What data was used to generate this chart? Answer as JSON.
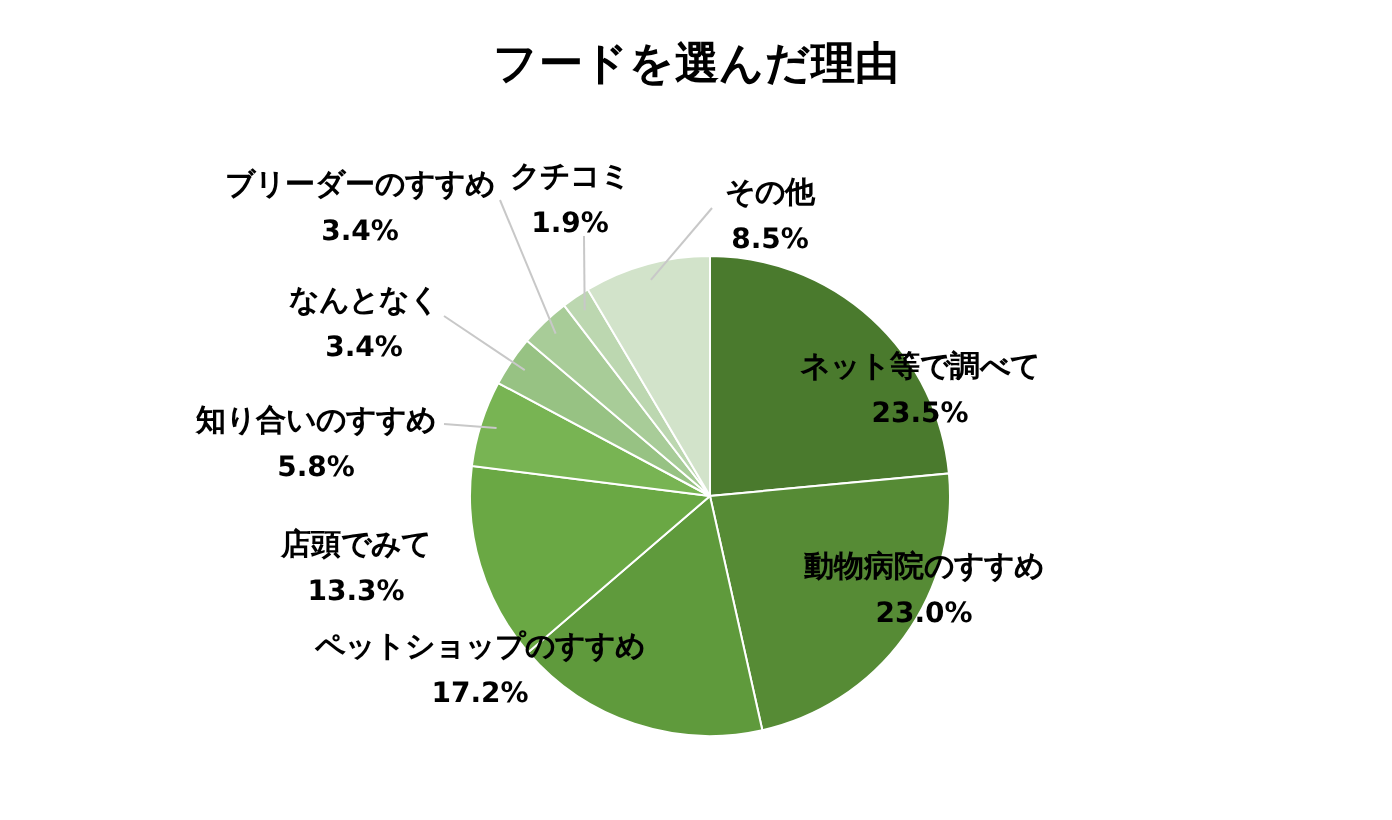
{
  "chart_data": {
    "type": "pie",
    "title": "フードを選んだ理由",
    "categories": [
      "ネット等で調べて",
      "動物病院のすすめ",
      "ペットショップのすすめ",
      "店頭でみて",
      "知り合いのすすめ",
      "なんとなく",
      "ブリーダーのすすめ",
      "クチコミ",
      "その他"
    ],
    "values": [
      23.5,
      23.0,
      17.2,
      13.3,
      5.8,
      3.4,
      3.4,
      1.9,
      8.5
    ],
    "value_labels": [
      "23.5%",
      "23.0%",
      "17.2%",
      "13.3%",
      "5.8%",
      "3.4%",
      "3.4%",
      "1.9%",
      "8.5%"
    ],
    "colors": [
      "#4a7a2d",
      "#568b35",
      "#5f9a3c",
      "#6aa844",
      "#78b453",
      "#97c283",
      "#a8cc98",
      "#bcd7b0",
      "#d2e3ca"
    ]
  }
}
